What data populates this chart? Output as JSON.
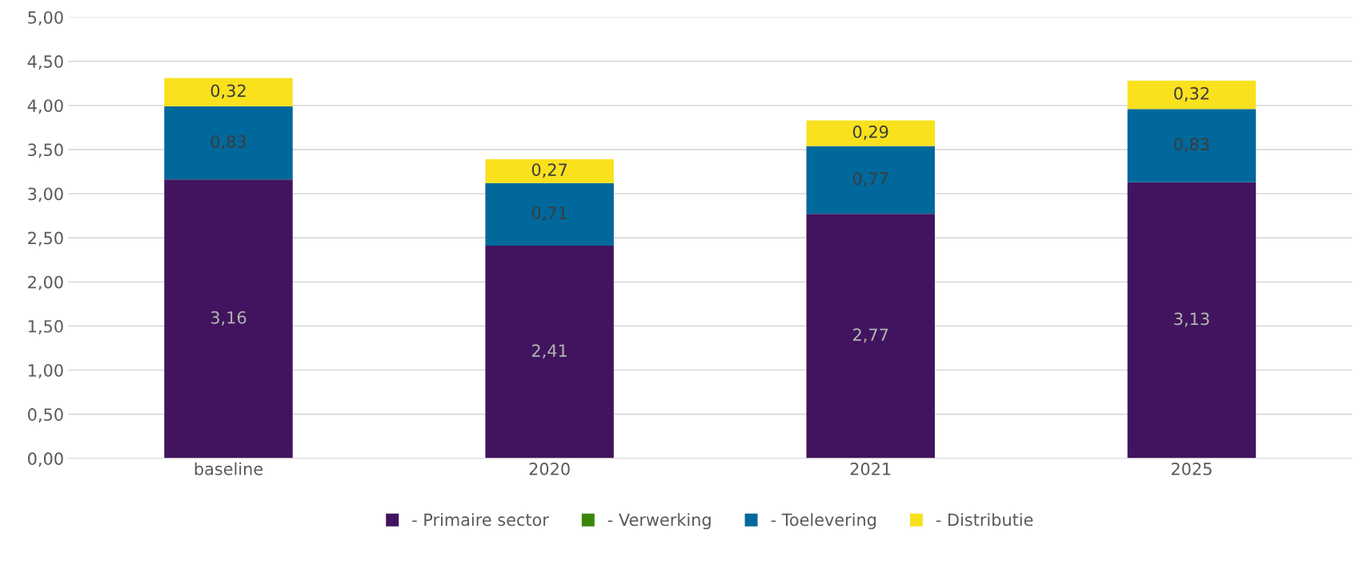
{
  "chart_data": {
    "type": "bar",
    "stacked": true,
    "categories": [
      "baseline",
      "2020",
      "2021",
      "2025"
    ],
    "series": [
      {
        "name": "- Primaire sector",
        "color": "#42145f",
        "values": [
          3.16,
          2.41,
          2.77,
          3.13
        ],
        "value_labels": [
          "3,16",
          "2,41",
          "2,77",
          "3,13"
        ]
      },
      {
        "name": "- Verwerking",
        "color": "#39870c",
        "values": [
          null,
          null,
          null,
          null
        ]
      },
      {
        "name": "- Toelevering",
        "color": "#01689b",
        "values": [
          0.83,
          0.71,
          0.77,
          0.83
        ],
        "value_labels": [
          "0,83",
          "0,71",
          "0,77",
          "0,83"
        ]
      },
      {
        "name": "- Distributie",
        "color": "#f9e11e",
        "values": [
          0.32,
          0.27,
          0.29,
          0.32
        ],
        "value_labels": [
          "0,32",
          "0,27",
          "0,29",
          "0,32"
        ]
      }
    ],
    "ylim": [
      0,
      5
    ],
    "yticks": [
      {
        "value": 0,
        "label": "0,00"
      },
      {
        "value": 0.5,
        "label": "0,50"
      },
      {
        "value": 1,
        "label": "1,00"
      },
      {
        "value": 1.5,
        "label": "1,50"
      },
      {
        "value": 2,
        "label": "2,00"
      },
      {
        "value": 2.5,
        "label": "2,50"
      },
      {
        "value": 3,
        "label": "3,00"
      },
      {
        "value": 3.5,
        "label": "3,50"
      },
      {
        "value": 4,
        "label": "4,00"
      },
      {
        "value": 4.5,
        "label": "4,50"
      },
      {
        "value": 5,
        "label": "5,00"
      }
    ],
    "grid": "y",
    "legend": "bottom"
  }
}
